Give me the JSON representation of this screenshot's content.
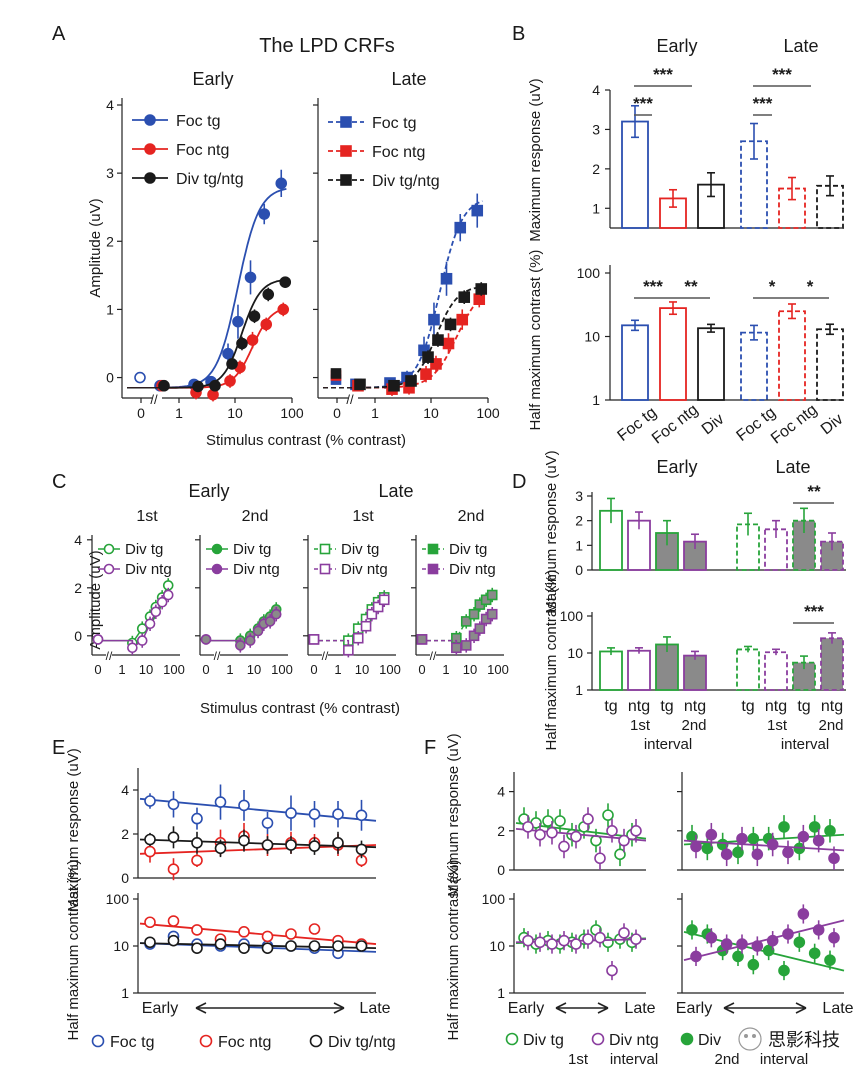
{
  "figure_title": "The LPD CRFs",
  "panel_letters": [
    "A",
    "B",
    "C",
    "D",
    "E",
    "F"
  ],
  "colors": {
    "foc_tg": "#2b4fb0",
    "foc_ntg": "#e52421",
    "div": "#1a1a1a",
    "tg": "#27a43a",
    "ntg": "#8a3d9e",
    "filled": "#8a8a8a"
  },
  "chart_data": [
    {
      "panel": "A",
      "type": "line",
      "subtitles": [
        "Early",
        "Late"
      ],
      "xlabel": "Stimulus contrast (% contrast)",
      "ylabel": "Amplitude (uV)",
      "xscale": "log",
      "xticks": [
        "0",
        "1",
        "10",
        "100"
      ],
      "yticks": [
        "0",
        "1",
        "2",
        "3",
        "4"
      ],
      "ylim": [
        -0.3,
        4
      ],
      "contrast": [
        0.5,
        2,
        4,
        8,
        12,
        20,
        35,
        70
      ],
      "early": [
        {
          "name": "Foc tg",
          "y": [
            -0.12,
            -0.1,
            -0.06,
            0.35,
            0.82,
            1.47,
            2.4,
            2.85
          ],
          "err": [
            0.05,
            0.05,
            0.08,
            0.15,
            0.25,
            0.25,
            0.15,
            0.2
          ],
          "baseline": 0.0,
          "fit": [
            -0.15,
            2.95,
            11,
            2.3
          ]
        },
        {
          "name": "Foc ntg",
          "y": [
            -0.12,
            -0.22,
            -0.25,
            -0.05,
            0.15,
            0.55,
            0.78,
            1.0
          ],
          "err": [
            0.05,
            0.1,
            0.1,
            0.1,
            0.1,
            0.12,
            0.1,
            0.1
          ],
          "baseline": null,
          "fit": [
            -0.15,
            1.2,
            20,
            2.6
          ]
        },
        {
          "name": "Div tg/ntg",
          "y": [
            -0.12,
            -0.13,
            -0.12,
            0.2,
            0.5,
            0.9,
            1.22,
            1.4
          ],
          "err": [
            0.05,
            0.08,
            0.08,
            0.08,
            0.1,
            0.1,
            0.1,
            0.08
          ],
          "baseline": null,
          "fit": [
            -0.15,
            1.6,
            13,
            2.6
          ]
        }
      ],
      "late": [
        {
          "name": "Foc tg",
          "y": [
            -0.1,
            -0.08,
            0.0,
            0.4,
            0.85,
            1.45,
            2.2,
            2.45
          ],
          "err": [
            0.08,
            0.08,
            0.1,
            0.2,
            0.25,
            0.25,
            0.2,
            0.25
          ],
          "baseline": -0.03,
          "fit": [
            -0.15,
            2.8,
            14,
            2.2
          ]
        },
        {
          "name": "Foc ntg",
          "y": [
            -0.12,
            -0.17,
            -0.15,
            0.05,
            0.2,
            0.5,
            0.85,
            1.15
          ],
          "err": [
            0.08,
            0.1,
            0.1,
            0.12,
            0.12,
            0.15,
            0.15,
            0.12
          ],
          "baseline": 0.03,
          "fit": [
            -0.15,
            1.5,
            28,
            2.0
          ]
        },
        {
          "name": "Div tg/ntg",
          "y": [
            -0.1,
            -0.12,
            -0.05,
            0.3,
            0.55,
            0.78,
            1.18,
            1.3
          ],
          "err": [
            0.06,
            0.08,
            0.08,
            0.1,
            0.1,
            0.1,
            0.1,
            0.1
          ],
          "baseline": 0.06,
          "fit": [
            -0.15,
            1.5,
            12,
            2.3
          ]
        }
      ],
      "legend": [
        "Foc tg",
        "Foc ntg",
        "Div tg/ntg"
      ]
    },
    {
      "panel": "B",
      "type": "bar",
      "subtitles": [
        "Early",
        "Late"
      ],
      "categories": [
        "Foc tg",
        "Foc ntg",
        "Div"
      ],
      "top": {
        "ylabel": "Maximum response (uV)",
        "yticks": [
          "1",
          "2",
          "3",
          "4"
        ],
        "ylim": [
          0.5,
          4
        ],
        "early": [
          3.2,
          1.25,
          1.6
        ],
        "early_err": [
          0.4,
          0.22,
          0.3
        ],
        "late": [
          2.7,
          1.5,
          1.57
        ],
        "late_err": [
          0.45,
          0.28,
          0.25
        ],
        "sig_early": [
          "***",
          "***"
        ],
        "sig_late": [
          "***",
          "***"
        ]
      },
      "bottom": {
        "ylabel": "Half maximum contrast (%)",
        "yticks": [
          "1",
          "10",
          "100"
        ],
        "yscale": "log",
        "ylim": [
          1,
          100
        ],
        "early": [
          15,
          28,
          13.5
        ],
        "early_err_factor": [
          1.2,
          1.25,
          1.15
        ],
        "late": [
          11.5,
          25,
          13
        ],
        "late_err_factor": [
          1.3,
          1.3,
          1.2
        ],
        "sig_early": [
          "***",
          "**"
        ],
        "sig_late": [
          "*",
          "*"
        ]
      }
    },
    {
      "panel": "C",
      "type": "scatter",
      "subtitles": [
        "Early",
        "Late"
      ],
      "subsubtitles": [
        "1st",
        "2nd",
        "1st",
        "2nd"
      ],
      "xlabel": "Stimulus contrast (% contrast)",
      "ylabel": "Amplitude (uV)",
      "xticks": [
        "0",
        "1",
        "10",
        "100"
      ],
      "yticks": [
        "0",
        "2",
        "4"
      ],
      "contrast": [
        2.5,
        6,
        12,
        20,
        35,
        60
      ],
      "legends": [
        [
          "Div tg",
          "Div ntg"
        ],
        [
          "Div tg",
          "Div ntg"
        ],
        [
          "Div tg",
          "Div ntg"
        ],
        [
          "Div tg",
          "Div ntg"
        ]
      ],
      "subplots": [
        {
          "tg": [
            -0.3,
            0.3,
            0.8,
            1.2,
            1.6,
            2.1
          ],
          "ntg": [
            -0.5,
            -0.2,
            0.5,
            1.0,
            1.4,
            1.7
          ],
          "base": [
            -0.2,
            -0.2
          ]
        },
        {
          "tg": [
            -0.2,
            0.0,
            0.3,
            0.6,
            0.8,
            1.1
          ],
          "ntg": [
            -0.4,
            -0.2,
            0.2,
            0.5,
            0.6,
            0.9
          ],
          "base": [
            -0.2,
            -0.2
          ]
        },
        {
          "tg": [
            -0.2,
            0.3,
            0.7,
            1.1,
            1.4,
            1.6
          ],
          "ntg": [
            -0.6,
            -0.1,
            0.4,
            0.9,
            1.2,
            1.5
          ],
          "base": [
            -0.2,
            -0.2
          ]
        },
        {
          "tg": [
            -0.1,
            0.6,
            0.9,
            1.3,
            1.5,
            1.7
          ],
          "ntg": [
            -0.5,
            -0.4,
            0.0,
            0.3,
            0.7,
            0.9
          ],
          "base": [
            -0.2,
            -0.2
          ]
        }
      ]
    },
    {
      "panel": "D",
      "type": "bar",
      "subtitles": [
        "Early",
        "Late"
      ],
      "categories": [
        "tg",
        "ntg",
        "tg",
        "ntg"
      ],
      "interval_labels": [
        "1st",
        "2nd"
      ],
      "interval_word": "interval",
      "top": {
        "ylabel": "Maximum response (uV)",
        "yticks": [
          "0",
          "1",
          "2",
          "3"
        ],
        "ylim": [
          0,
          3
        ],
        "early": [
          2.4,
          2.0,
          1.5,
          1.15
        ],
        "early_err": [
          0.5,
          0.35,
          0.5,
          0.3
        ],
        "late": [
          1.85,
          1.65,
          2.0,
          1.15
        ],
        "late_err": [
          0.45,
          0.35,
          0.5,
          0.35
        ],
        "sig": "**"
      },
      "bottom": {
        "ylabel": "Half maximum contrast (%)",
        "yticks": [
          "1",
          "10",
          "100"
        ],
        "ylim": [
          1,
          100
        ],
        "early": [
          11,
          11.5,
          17,
          8.5
        ],
        "early_err_factor": [
          1.25,
          1.2,
          1.6,
          1.3
        ],
        "late": [
          12.5,
          10.5,
          5.5,
          25
        ],
        "late_err_factor": [
          1.2,
          1.2,
          1.5,
          1.4
        ],
        "sig": "***"
      }
    },
    {
      "panel": "E",
      "type": "scatter",
      "xlabel_left": "Early",
      "xlabel_right": "Late",
      "legend": [
        "Foc tg",
        "Foc ntg",
        "Div tg/ntg"
      ],
      "top": {
        "ylabel": "Maximum response (uV)",
        "yticks": [
          "0",
          "2",
          "4"
        ],
        "ylim": [
          0,
          5
        ],
        "foc_tg": [
          3.5,
          3.35,
          2.7,
          3.45,
          3.3,
          2.5,
          2.95,
          2.9,
          2.9,
          2.85
        ],
        "foc_tg_err": [
          0.35,
          0.6,
          0.5,
          0.8,
          0.7,
          0.5,
          0.8,
          0.6,
          0.6,
          0.7
        ],
        "foc_tg_fit": [
          3.6,
          2.6
        ],
        "foc_ntg": [
          1.2,
          0.4,
          0.8,
          1.6,
          1.9,
          1.5,
          1.6,
          1.6,
          1.5,
          0.8
        ],
        "foc_ntg_err": [
          0.5,
          0.5,
          0.3,
          0.6,
          0.6,
          0.5,
          0.5,
          0.4,
          0.5,
          0.3
        ],
        "foc_ntg_fit": [
          1.1,
          1.5
        ],
        "div": [
          1.75,
          1.85,
          1.6,
          1.35,
          1.7,
          1.5,
          1.5,
          1.45,
          1.6,
          1.3
        ],
        "div_err": [
          0.3,
          0.5,
          0.5,
          0.4,
          0.5,
          0.4,
          0.4,
          0.4,
          0.5,
          0.4
        ],
        "div_fit": [
          1.75,
          1.4
        ]
      },
      "bottom": {
        "ylabel": "Half maximum contrast (%)",
        "yticks": [
          "1",
          "10",
          "100"
        ],
        "ylim": [
          1,
          100
        ],
        "foc_tg": [
          11,
          16,
          11,
          10,
          11,
          10,
          10,
          9,
          7,
          10
        ],
        "foc_tg_fit": [
          11.5,
          7.5
        ],
        "foc_ntg": [
          32,
          34,
          22,
          14,
          20,
          16,
          18,
          23,
          13,
          11
        ],
        "foc_ntg_fit": [
          30,
          11
        ],
        "div": [
          12,
          13,
          9,
          11,
          9,
          9,
          10,
          10,
          10,
          10
        ],
        "div_fit": [
          11.5,
          9
        ]
      }
    },
    {
      "panel": "F",
      "type": "scatter",
      "xlabel_left": "Early",
      "xlabel_right": "Late",
      "legend": [
        "Div tg",
        "Div ntg",
        "Div"
      ],
      "interval_labels": [
        "1st",
        "2nd"
      ],
      "interval_word": "interval",
      "subplots": [
        {
          "top": {
            "tg": [
              2.6,
              2.4,
              2.5,
              2.5,
              1.8,
              2.2,
              1.5,
              2.8,
              0.8,
              1.8
            ],
            "ntg": [
              2.2,
              1.8,
              1.9,
              1.2,
              1.7,
              2.6,
              0.6,
              2.0,
              1.5,
              2.0
            ],
            "tg_fit": [
              2.4,
              1.6
            ],
            "ntg_fit": [
              2.1,
              1.5
            ]
          },
          "bottom": {
            "tg": [
              15,
              11,
              13,
              11,
              12,
              14,
              22,
              12,
              14,
              12
            ],
            "ntg": [
              13,
              12,
              11,
              13,
              11,
              14,
              15,
              3,
              19,
              14
            ],
            "tg_fit": [
              11.5,
              14.5
            ],
            "ntg_fit": [
              12,
              14
            ]
          }
        },
        {
          "top": {
            "tg": [
              1.7,
              1.1,
              1.3,
              0.9,
              1.6,
              1.6,
              2.2,
              1.1,
              2.2,
              2.0
            ],
            "ntg": [
              1.2,
              1.8,
              0.8,
              1.6,
              0.8,
              1.3,
              0.9,
              1.7,
              1.5,
              0.6
            ],
            "tg_fit": [
              1.3,
              1.8
            ],
            "ntg_fit": [
              1.5,
              1.0
            ],
            "filled": true
          },
          "bottom": {
            "tg": [
              22,
              18,
              8,
              6,
              4,
              8,
              3,
              12,
              7,
              5
            ],
            "ntg": [
              6,
              15,
              11,
              11,
              10,
              13,
              18,
              48,
              22,
              15
            ],
            "tg_fit": [
              20,
              3
            ],
            "ntg_fit": [
              5,
              35
            ],
            "filled": true
          }
        }
      ],
      "yticks_top": [
        "0",
        "2",
        "4"
      ],
      "yticks_bottom": [
        "1",
        "10",
        "100"
      ],
      "ylabel_top": "Maximum response (uV)",
      "ylabel_bottom": "Half maximum contrast (%)"
    }
  ],
  "watermark": "思影科技"
}
